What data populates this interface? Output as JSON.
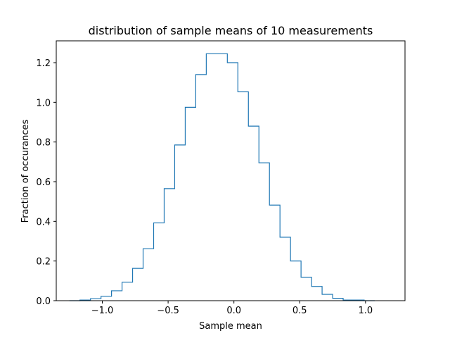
{
  "chart_data": {
    "type": "step-histogram",
    "title": "distribution of sample means of 10 measurements",
    "xlabel": "Sample mean",
    "ylabel": "Fraction of occurances",
    "xlim": [
      -1.35,
      1.3
    ],
    "ylim": [
      0,
      1.31
    ],
    "xticks": [
      -1.0,
      -0.5,
      0.0,
      0.5,
      1.0
    ],
    "xtick_labels": [
      "−1.0",
      "−0.5",
      "0.0",
      "0.5",
      "1.0"
    ],
    "yticks": [
      0.0,
      0.2,
      0.4,
      0.6,
      0.8,
      1.0,
      1.2
    ],
    "ytick_labels": [
      "0.0",
      "0.2",
      "0.4",
      "0.6",
      "0.8",
      "1.0",
      "1.2"
    ],
    "bin_start": -1.25,
    "bin_width": 0.08,
    "values": [
      0.0,
      0.003,
      0.01,
      0.022,
      0.05,
      0.093,
      0.163,
      0.262,
      0.392,
      0.565,
      0.785,
      0.975,
      1.14,
      1.245,
      1.245,
      1.2,
      1.053,
      0.88,
      0.695,
      0.482,
      0.32,
      0.2,
      0.118,
      0.072,
      0.032,
      0.012,
      0.003,
      0.003,
      0.0
    ],
    "line_color": "#1f77b4",
    "grid": false,
    "legend": "none"
  }
}
